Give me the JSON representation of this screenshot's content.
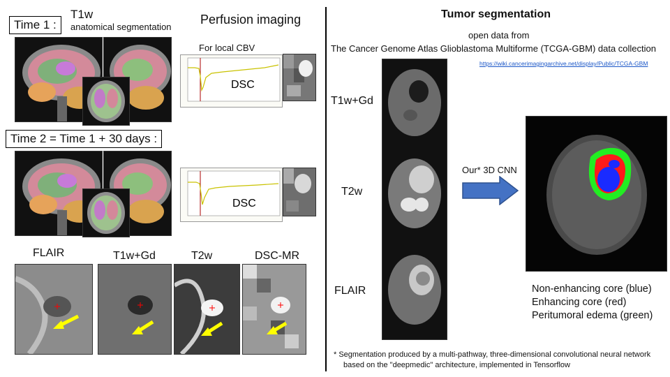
{
  "left": {
    "time1_label": "Time 1 :",
    "t1w_title": "T1w",
    "t1w_subtitle": "anatomical segmentation",
    "perfusion_title": "Perfusion imaging",
    "local_cbv_label": "For local CBV",
    "dsc_label_1": "DSC",
    "time2_label": "Time 2 = Time 1 + 30 days :",
    "dsc_label_2": "DSC",
    "bottom_labels": [
      "FLAIR",
      "T1w+Gd",
      "T2w",
      "DSC-MR"
    ]
  },
  "right": {
    "title": "Tumor segmentation",
    "source_line1": "open data from",
    "source_line2": "The Cancer Genome Atlas Glioblastoma Multiforme (TCGA-GBM) data collection",
    "url": "https://wiki.cancerimagingarchive.net/display/Public/TCGA-GBM",
    "modalities": [
      "T1w+Gd",
      "T2w",
      "FLAIR"
    ],
    "arrow_label": "Our* 3D CNN",
    "legend": [
      {
        "text": "Non-enhancing core (blue)",
        "color": "#1a2bff"
      },
      {
        "text": "Enhancing core (red)",
        "color": "#ff1a1a"
      },
      {
        "text": "Peritumoral edema (green)",
        "color": "#22ee22"
      }
    ],
    "footnote_line1": "* Segmentation produced by a multi-pathway, three-dimensional convolutional neural network",
    "footnote_line2": "based on the \"deepmedic\" architecture, implemented in Tensorflow"
  },
  "colors": {
    "arrow_fill": "#4472c4",
    "arrow_stroke": "#2f528f",
    "plot_trace": "#c9c200",
    "crosshair": "#ff0000",
    "marker_arrow": "#ffff00"
  }
}
